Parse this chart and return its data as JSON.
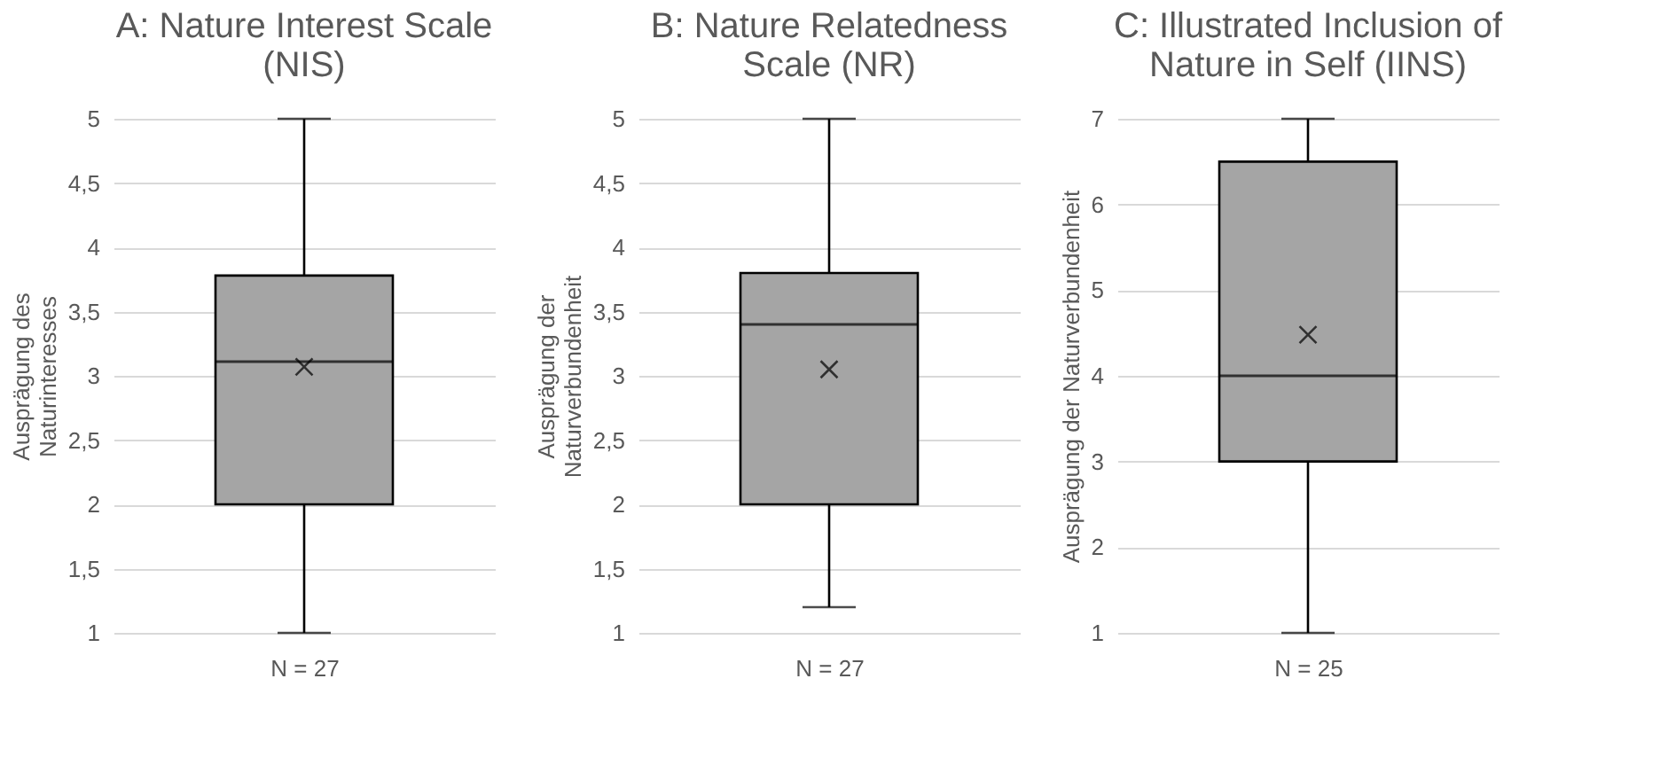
{
  "chart_data": [
    {
      "type": "box",
      "title": "A: Nature Interest Scale\n(NIS)",
      "xlabel": "N = 27",
      "ylabel": "Ausprägung des\nNaturinteresses",
      "categories": [
        null
      ],
      "color": "#a5a5a5",
      "marker": "cross",
      "boxes": [
        {
          "low": 1,
          "q1": 2,
          "median": 3.11,
          "q3": 3.78,
          "high": 5,
          "mean": 3.07
        }
      ],
      "ylim": [
        1,
        5
      ],
      "yticks": [
        1,
        {
          "value": 1.5,
          "label": "1,5"
        },
        2,
        {
          "value": 2.5,
          "label": "2,5"
        },
        3,
        {
          "value": 3.5,
          "label": "3,5"
        },
        4,
        {
          "value": 4.5,
          "label": "4,5"
        },
        5
      ],
      "grid": "y",
      "tick_labels": "y"
    },
    {
      "type": "box",
      "title": "B: Nature Relatedness\nScale (NR)",
      "xlabel": "N = 27",
      "ylabel": "Ausprägung der\nNaturverbundenheit",
      "categories": [
        null
      ],
      "color": "#a5a5a5",
      "marker": "cross",
      "boxes": [
        {
          "low": 1.2,
          "q1": 2,
          "median": 3.4,
          "q3": 3.8,
          "high": 5,
          "mean": 3.05
        }
      ],
      "ylim": [
        1,
        5
      ],
      "yticks": [
        1,
        {
          "value": 1.5,
          "label": "1,5"
        },
        2,
        {
          "value": 2.5,
          "label": "2,5"
        },
        3,
        {
          "value": 3.5,
          "label": "3,5"
        },
        4,
        {
          "value": 4.5,
          "label": "4,5"
        },
        5
      ],
      "grid": "y",
      "tick_labels": "y"
    },
    {
      "type": "box",
      "title": "C: Illustrated Inclusion of\nNature in Self (IINS)",
      "xlabel": "N = 25",
      "ylabel": "Ausprägung der Naturverbundenheit",
      "categories": [
        null
      ],
      "color": "#a5a5a5",
      "marker": "cross",
      "boxes": [
        {
          "low": 1,
          "q1": 3,
          "median": 4,
          "q3": 6.5,
          "high": 7,
          "mean": 4.48
        }
      ],
      "ylim": [
        1,
        7
      ],
      "yticks": [
        1,
        2,
        3,
        4,
        5,
        6,
        7
      ],
      "grid": "y",
      "tick_labels": "y"
    }
  ]
}
